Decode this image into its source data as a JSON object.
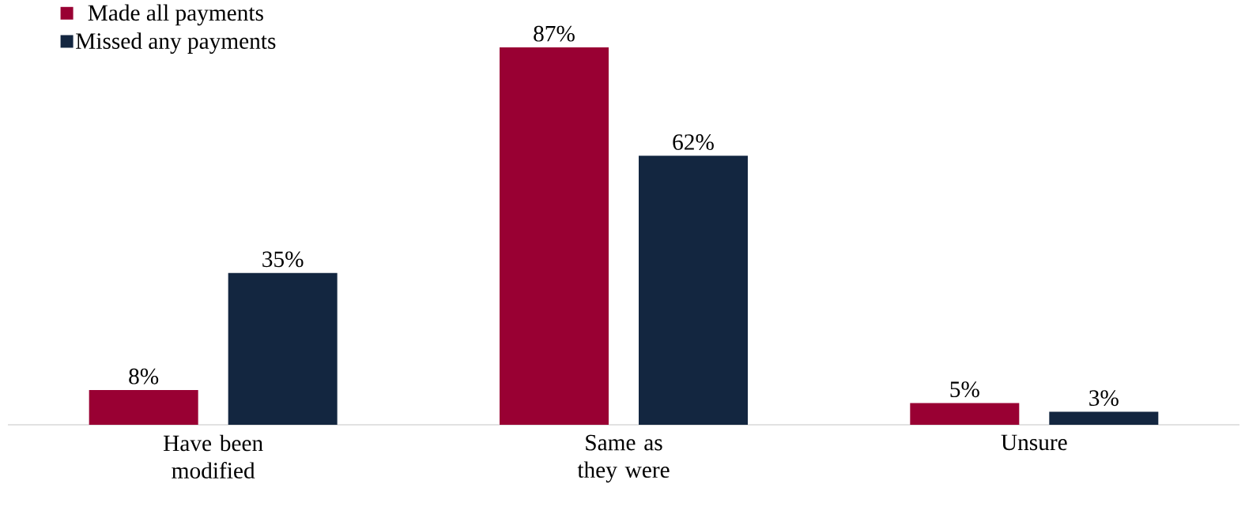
{
  "chart_data": {
    "type": "bar",
    "categories": [
      "Have been modified",
      "Same as they were",
      "Unsure"
    ],
    "series": [
      {
        "name": "Made all payments",
        "color": "#990033",
        "values": [
          8,
          87,
          5
        ],
        "value_labels": [
          "8%",
          "87%",
          "5%"
        ]
      },
      {
        "name": "Missed any payments",
        "color": "#132640",
        "values": [
          35,
          62,
          3
        ],
        "value_labels": [
          "35%",
          "62%",
          "3%"
        ]
      }
    ],
    "legend": "top left",
    "grid": false
  }
}
